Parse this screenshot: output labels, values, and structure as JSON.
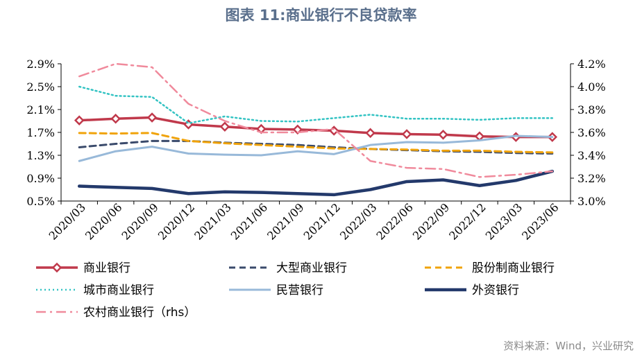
{
  "title": "图表 11:商业银行不良贷款率",
  "source": "资料来源：Wind，兴业研究",
  "chart_data": {
    "type": "line",
    "x": [
      "2020/03",
      "2020/06",
      "2020/09",
      "2020/12",
      "2021/03",
      "2021/06",
      "2021/09",
      "2021/12",
      "2022/03",
      "2022/06",
      "2022/09",
      "2022/12",
      "2023/03",
      "2023/06"
    ],
    "y_left": {
      "ticks": [
        "2.9%",
        "2.5%",
        "2.1%",
        "1.7%",
        "1.3%",
        "0.9%",
        "0.5%"
      ],
      "range": [
        0.5,
        2.9
      ]
    },
    "y_right": {
      "ticks": [
        "4.2%",
        "4.0%",
        "3.8%",
        "3.6%",
        "3.4%",
        "3.2%",
        "3.0%"
      ],
      "range": [
        3.0,
        4.2
      ]
    },
    "series": [
      {
        "name": "商业银行",
        "axis": "left",
        "color": "#c0394b",
        "style": "solid-marker",
        "values": [
          1.91,
          1.94,
          1.96,
          1.84,
          1.8,
          1.76,
          1.75,
          1.73,
          1.69,
          1.67,
          1.66,
          1.63,
          1.62,
          1.62
        ]
      },
      {
        "name": "大型商业银行",
        "axis": "left",
        "color": "#3a4a6b",
        "style": "dash",
        "values": [
          1.44,
          1.5,
          1.55,
          1.55,
          1.52,
          1.5,
          1.48,
          1.44,
          1.41,
          1.39,
          1.37,
          1.36,
          1.34,
          1.33
        ]
      },
      {
        "name": "股份制商业银行",
        "axis": "left",
        "color": "#f0a30a",
        "style": "dash",
        "values": [
          1.69,
          1.68,
          1.69,
          1.55,
          1.51,
          1.48,
          1.45,
          1.42,
          1.41,
          1.4,
          1.38,
          1.38,
          1.36,
          1.35
        ]
      },
      {
        "name": "城市商业银行",
        "axis": "left",
        "color": "#33c3c3",
        "style": "dot",
        "values": [
          2.5,
          2.34,
          2.32,
          1.86,
          1.98,
          1.9,
          1.89,
          1.95,
          2.01,
          1.94,
          1.94,
          1.92,
          1.95,
          1.95
        ]
      },
      {
        "name": "民营银行",
        "axis": "left",
        "color": "#98b9d9",
        "style": "solid",
        "values": [
          1.2,
          1.37,
          1.45,
          1.33,
          1.31,
          1.3,
          1.37,
          1.32,
          1.48,
          1.53,
          1.52,
          1.56,
          1.64,
          1.62
        ]
      },
      {
        "name": "外资银行",
        "axis": "left",
        "color": "#23396b",
        "style": "solid-thick",
        "values": [
          0.76,
          0.74,
          0.72,
          0.63,
          0.66,
          0.65,
          0.63,
          0.61,
          0.7,
          0.84,
          0.87,
          0.77,
          0.86,
          1.02
        ]
      },
      {
        "name": "农村商业银行（rhs）",
        "axis": "right",
        "color": "#f08a9c",
        "style": "dashdot",
        "values": [
          4.09,
          4.2,
          4.17,
          3.85,
          3.7,
          3.6,
          3.6,
          3.63,
          3.35,
          3.29,
          3.28,
          3.21,
          3.23,
          3.26
        ]
      }
    ],
    "grid": false,
    "legend_position": "bottom"
  }
}
